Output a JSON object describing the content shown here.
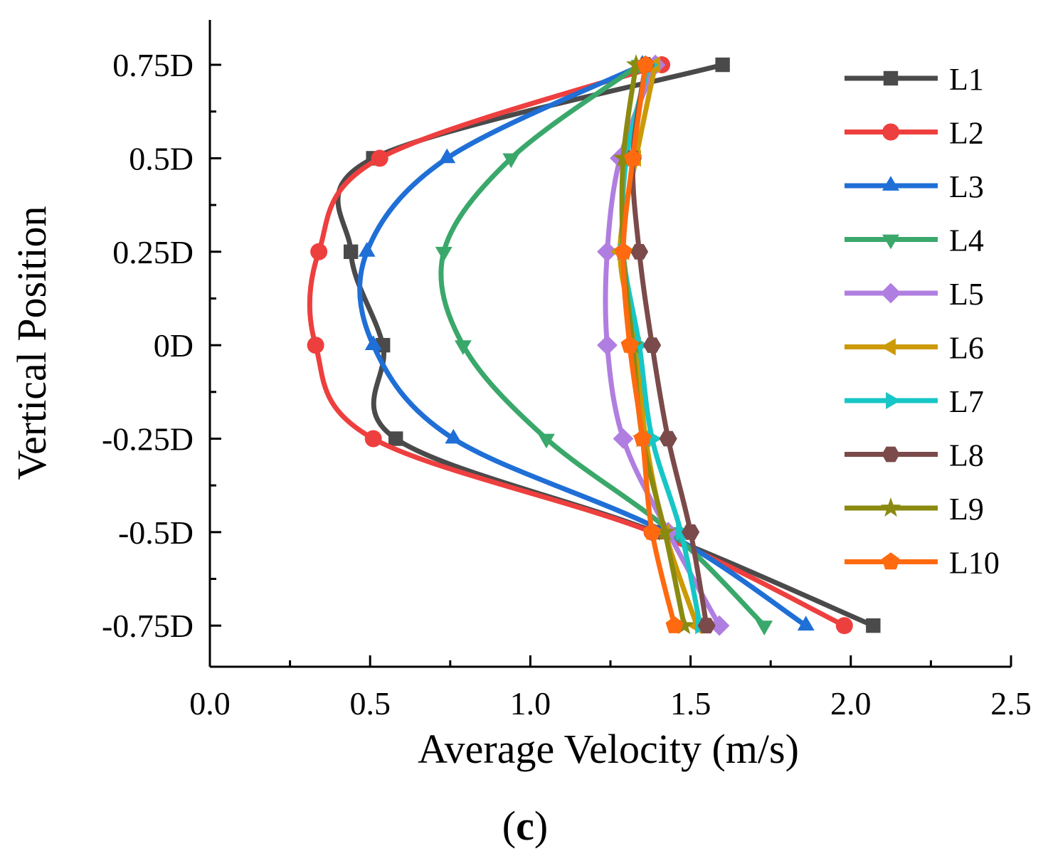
{
  "chart_data": {
    "type": "line",
    "title": "",
    "caption": {
      "open": "(",
      "letter": "c",
      "close": ")"
    },
    "xlabel": "Average Velocity (m/s)",
    "ylabel": "Vertical Position",
    "xlim": [
      0.0,
      2.5
    ],
    "ylim": [
      -0.86,
      0.87
    ],
    "x_ticks": [
      "0.0",
      "0.5",
      "1.0",
      "1.5",
      "2.0",
      "2.5"
    ],
    "x_tick_values": [
      0.0,
      0.5,
      1.0,
      1.5,
      2.0,
      2.5
    ],
    "y_ticks": [
      "0.75D",
      "0.5D",
      "0.25D",
      "0D",
      "-0.25D",
      "-0.5D",
      "-0.75D"
    ],
    "y_tick_values": [
      0.75,
      0.5,
      0.25,
      0.0,
      -0.25,
      -0.5,
      -0.75
    ],
    "grid": false,
    "legend_position": "right",
    "y": [
      0.75,
      0.5,
      0.25,
      0.0,
      -0.25,
      -0.5,
      -0.75
    ],
    "series": [
      {
        "name": "L1",
        "color": "#4a4a4a",
        "marker": "square",
        "x": [
          1.6,
          0.51,
          0.44,
          0.54,
          0.58,
          1.39,
          2.07
        ]
      },
      {
        "name": "L2",
        "color": "#ee3f3f",
        "marker": "circle",
        "x": [
          1.41,
          0.53,
          0.34,
          0.33,
          0.51,
          1.38,
          1.98
        ]
      },
      {
        "name": "L3",
        "color": "#1f6fd6",
        "marker": "triangle-up",
        "x": [
          1.35,
          0.74,
          0.49,
          0.51,
          0.76,
          1.42,
          1.86
        ]
      },
      {
        "name": "L4",
        "color": "#3aa86b",
        "marker": "triangle-down",
        "x": [
          1.34,
          0.94,
          0.73,
          0.79,
          1.05,
          1.44,
          1.73
        ]
      },
      {
        "name": "L5",
        "color": "#b07ee0",
        "marker": "diamond",
        "x": [
          1.39,
          1.28,
          1.24,
          1.24,
          1.29,
          1.43,
          1.59
        ]
      },
      {
        "name": "L6",
        "color": "#cc9a06",
        "marker": "triangle-left",
        "x": [
          1.39,
          1.33,
          1.28,
          1.33,
          1.36,
          1.42,
          1.52
        ]
      },
      {
        "name": "L7",
        "color": "#17c6c6",
        "marker": "triangle-right",
        "x": [
          1.37,
          1.3,
          1.29,
          1.34,
          1.38,
          1.47,
          1.53
        ]
      },
      {
        "name": "L8",
        "color": "#7b4a4a",
        "marker": "hexagon",
        "x": [
          1.36,
          1.32,
          1.34,
          1.38,
          1.43,
          1.5,
          1.55
        ]
      },
      {
        "name": "L9",
        "color": "#8a8a10",
        "marker": "star",
        "x": [
          1.33,
          1.29,
          1.29,
          1.32,
          1.35,
          1.42,
          1.48
        ]
      },
      {
        "name": "L10",
        "color": "#ff6a10",
        "marker": "pentagon",
        "x": [
          1.36,
          1.32,
          1.29,
          1.31,
          1.35,
          1.38,
          1.45
        ]
      }
    ]
  }
}
